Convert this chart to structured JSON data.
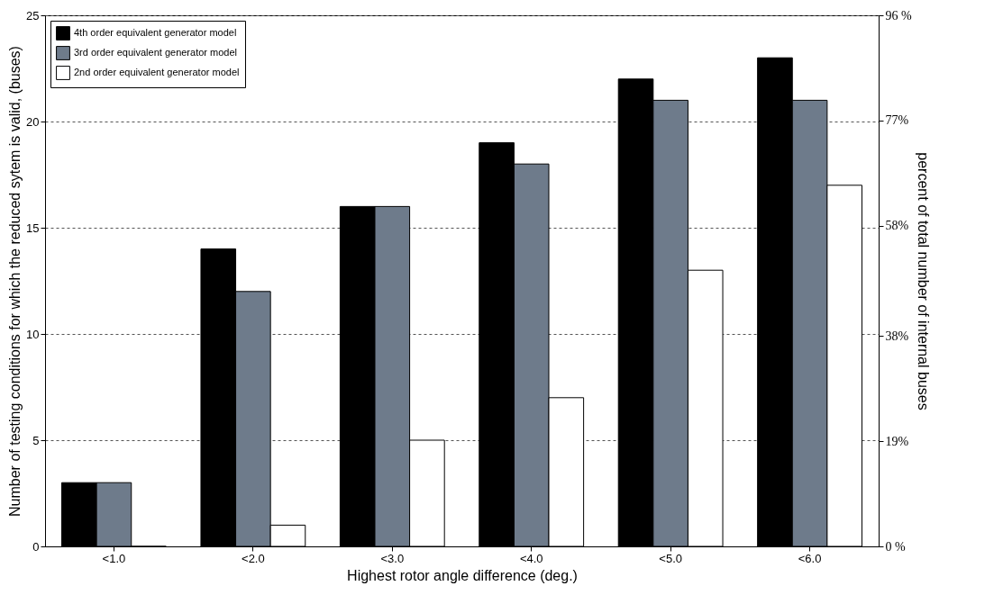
{
  "chart_data": {
    "type": "bar",
    "xlabel": "Highest rotor angle difference (deg.)",
    "ylabel": "Number of testing conditions for which the reduced sytem is valid, (buses)",
    "y2label": "percent of total number of internal buses",
    "categories": [
      "<1.0",
      "<2.0",
      "<3.0",
      "<4.0",
      "<5.0",
      "<6.0"
    ],
    "series": [
      {
        "name": "4th order equivalent generator model",
        "color": "#000000",
        "values": [
          3,
          14,
          16,
          19,
          22,
          23
        ]
      },
      {
        "name": "3rd order equivalent generator model",
        "color": "#6e7b8b",
        "values": [
          3,
          12,
          16,
          18,
          21,
          21
        ]
      },
      {
        "name": "2nd order equivalent generator model",
        "color": "#ffffff",
        "values": [
          0,
          1,
          5,
          7,
          13,
          17
        ]
      }
    ],
    "ylim": [
      0,
      25
    ],
    "yticks": [
      0,
      5,
      10,
      15,
      20,
      25
    ],
    "y2lim": [
      0,
      96
    ],
    "y2ticks": [
      {
        "value": 0,
        "label": "0 %"
      },
      {
        "value": 19,
        "label": "19%"
      },
      {
        "value": 38,
        "label": "38%"
      },
      {
        "value": 58,
        "label": "58%"
      },
      {
        "value": 77,
        "label": "77%"
      },
      {
        "value": 96,
        "label": "96 %"
      }
    ],
    "grid": "y",
    "legend": "top left"
  }
}
